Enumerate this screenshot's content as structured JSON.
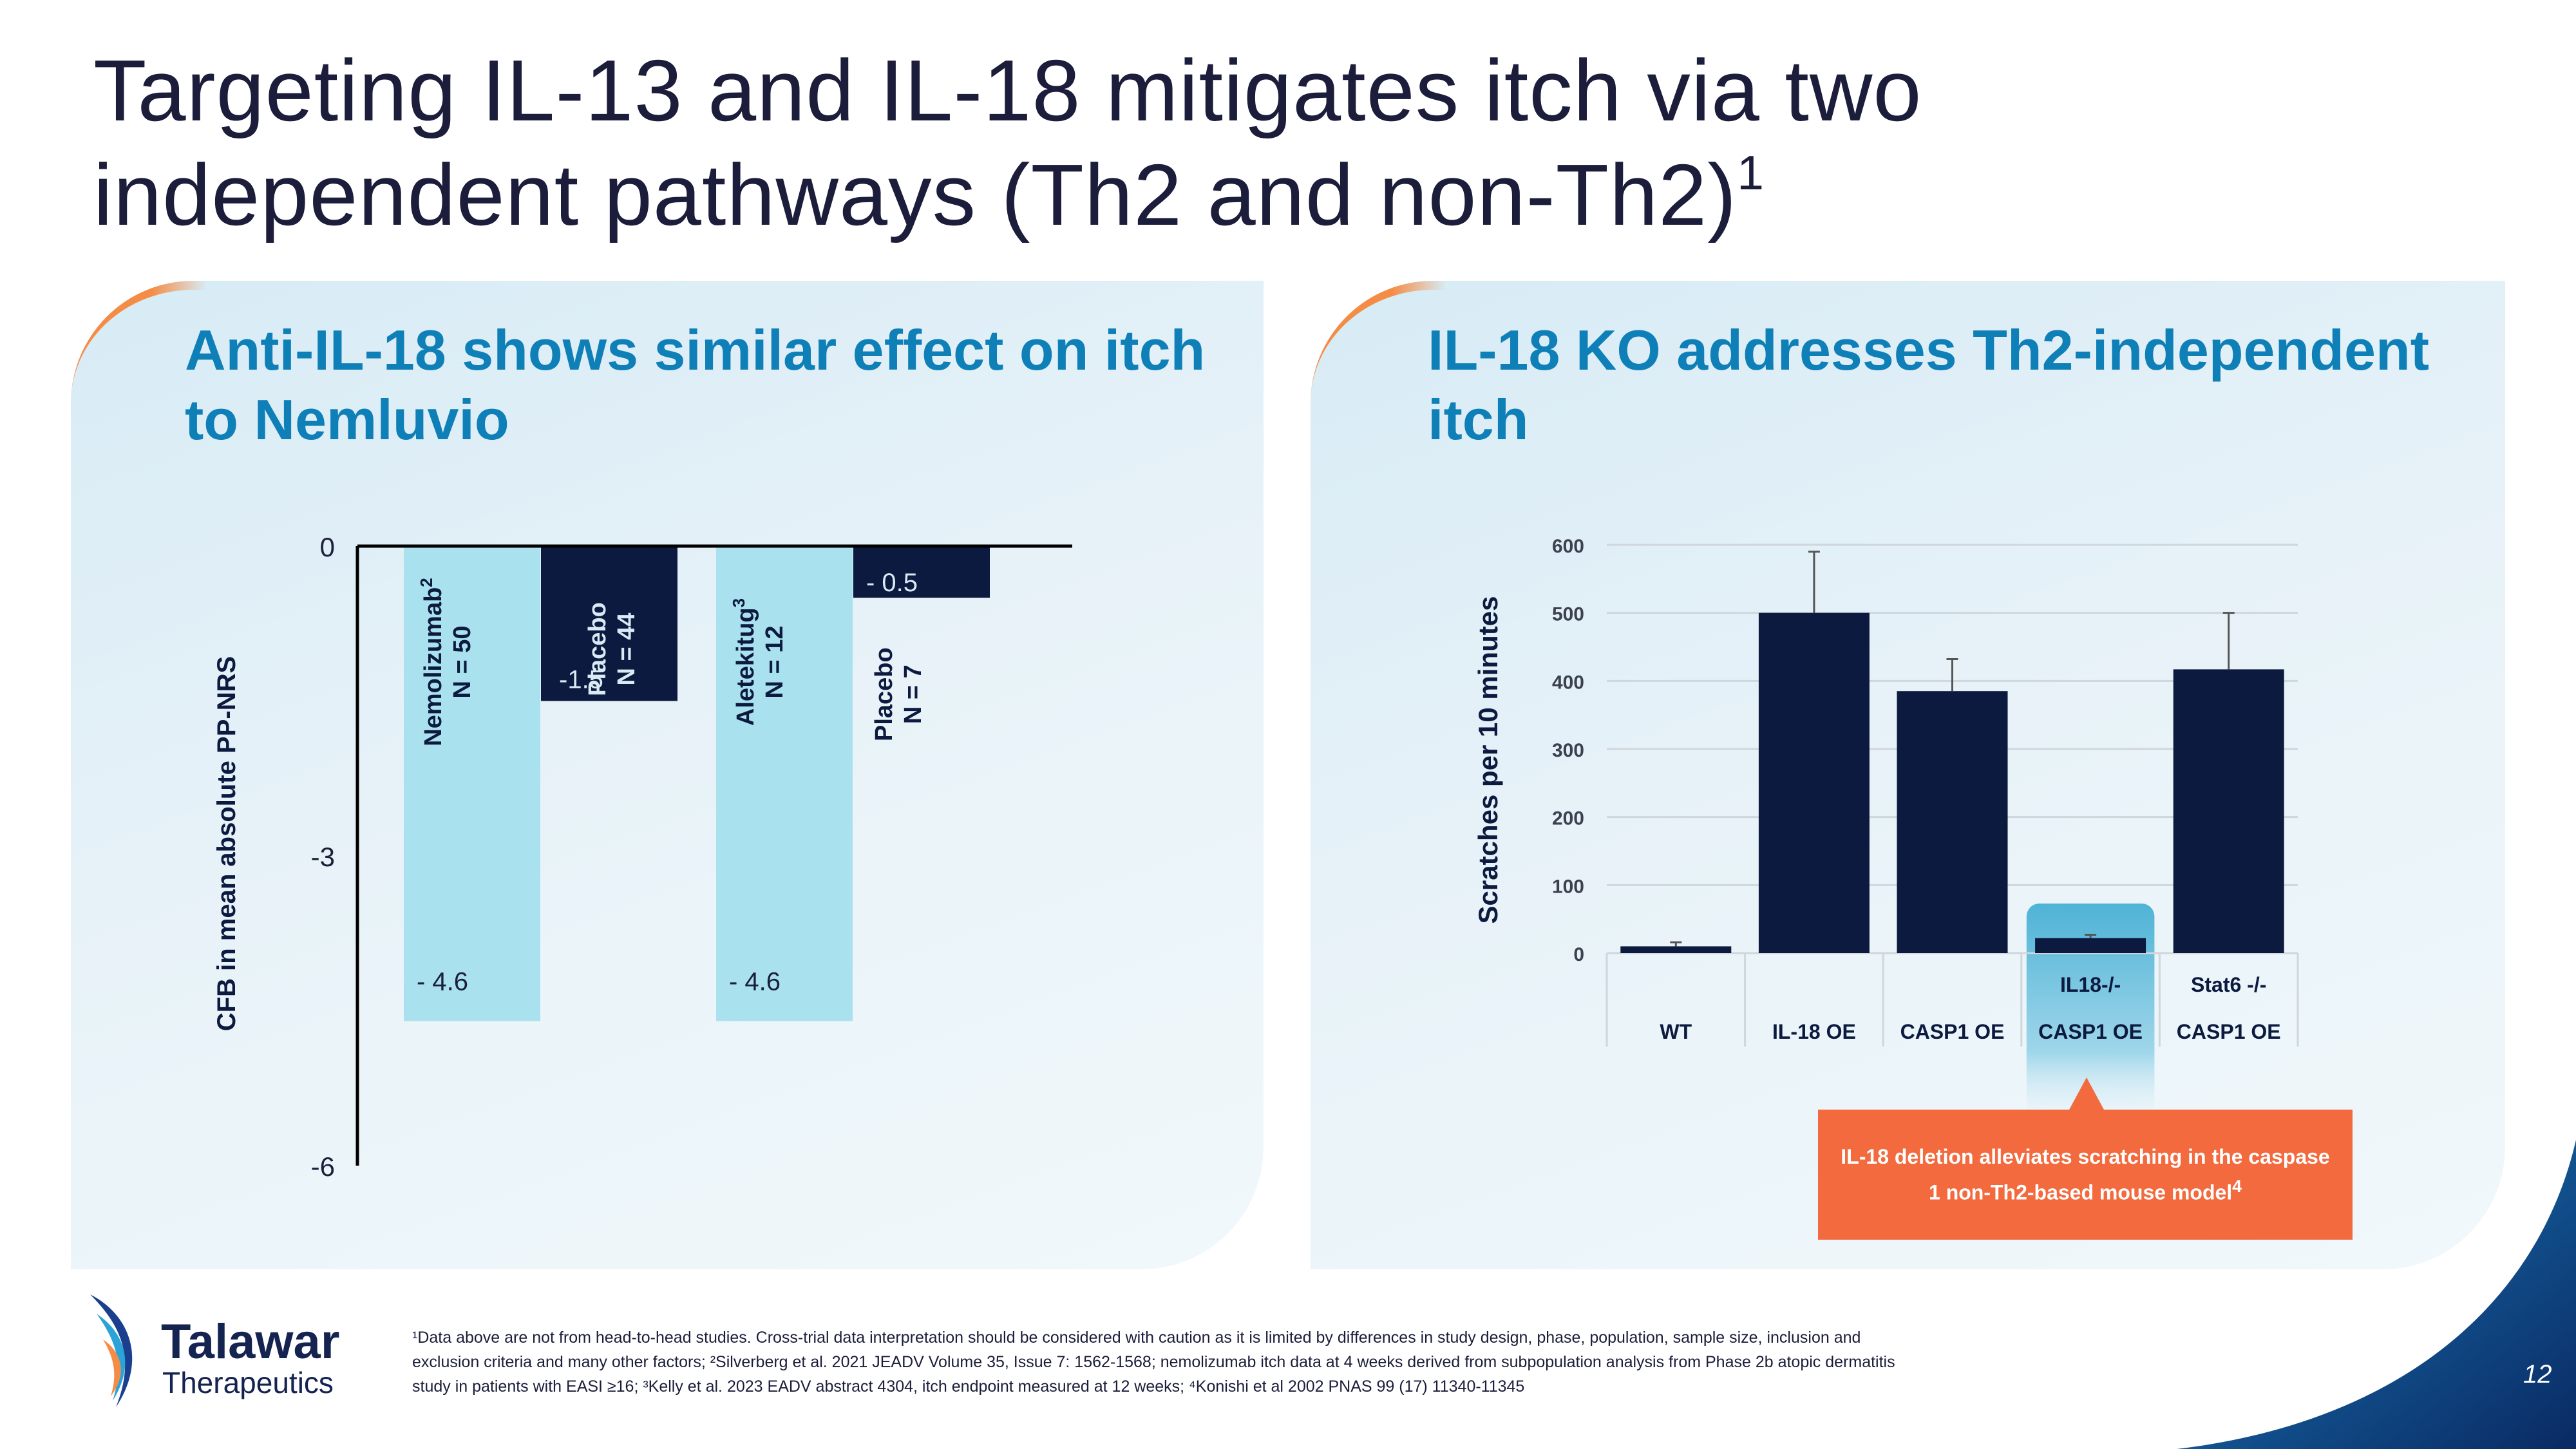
{
  "title": {
    "text": "Targeting IL-13 and IL-18 mitigates itch via two independent pathways (Th2 and non-Th2)",
    "sup": "1"
  },
  "left_panel": {
    "heading": "Anti-IL-18 shows similar effect on itch to Nemluvio"
  },
  "right_panel": {
    "heading": "IL-18 KO addresses Th2-independent itch"
  },
  "callout": {
    "text": "IL-18 deletion alleviates scratching in the caspase 1 non-Th2-based mouse model",
    "sup": "4"
  },
  "colors": {
    "light_bar": "#a9e2ee",
    "dark_bar": "#0c1a3f",
    "accent_orange": "#f26a3e",
    "heading_blue": "#0f7fb8",
    "highlight_blue": "#4fb3d6"
  },
  "chart_data": [
    {
      "type": "bar",
      "ylabel": "CFB in mean absolute PP-NRS",
      "ylim": [
        -6,
        0
      ],
      "yticks": [
        "0",
        "-3",
        "-6"
      ],
      "ytick_values": [
        0,
        -3,
        -6
      ],
      "categories": [
        "Nemolizumab² N = 50",
        "Placebo N = 44",
        "Aletekitug³ N = 12",
        "Placebo N = 7"
      ],
      "bars": [
        {
          "name": "Nemolizumab",
          "sup": "2",
          "n": "N = 50",
          "value": -4.6,
          "label": "- 4.6",
          "color": "#a9e2ee"
        },
        {
          "name": "Placebo",
          "sup": "",
          "n": "N = 44",
          "value": -1.5,
          "label": "-1.5",
          "color": "#0c1a3f"
        },
        {
          "name": "Aletekitug",
          "sup": "3",
          "n": "N = 12",
          "value": -4.6,
          "label": "- 4.6",
          "color": "#a9e2ee"
        },
        {
          "name": "Placebo",
          "sup": "",
          "n": "N = 7",
          "value": -0.5,
          "label": "- 0.5",
          "color": "#0c1a3f"
        }
      ]
    },
    {
      "type": "bar",
      "ylabel": "Scratches per 10 minutes",
      "ylim": [
        0,
        600
      ],
      "yticks": [
        "0",
        "100",
        "200",
        "300",
        "400",
        "500",
        "600"
      ],
      "ytick_values": [
        0,
        100,
        200,
        300,
        400,
        500,
        600
      ],
      "grid": true,
      "categories": [
        {
          "top": "",
          "bottom": "WT"
        },
        {
          "top": "",
          "bottom": "IL-18 OE"
        },
        {
          "top": "",
          "bottom": "CASP1 OE"
        },
        {
          "top": "IL18-/-",
          "bottom": "CASP1 OE"
        },
        {
          "top": "Stat6 -/-",
          "bottom": "CASP1 OE"
        }
      ],
      "values": [
        10,
        500,
        385,
        22,
        417
      ],
      "error_high": [
        16,
        590,
        432,
        27,
        500
      ],
      "highlight_index": 3
    }
  ],
  "logo": {
    "name": "Talawar",
    "sub": "Therapeutics"
  },
  "footnote": {
    "lines": [
      "¹Data above are not from head-to-head studies. Cross-trial data interpretation should be considered with caution as it is limited by differences in study design, phase, population, sample size, inclusion and",
      "exclusion criteria and many other factors; ²Silverberg et al. 2021 JEADV Volume 35, Issue 7: 1562-1568; nemolizumab itch data at 4 weeks derived from subpopulation analysis from Phase 2b atopic dermatitis",
      "study in patients with EASI ≥16; ³Kelly et al. 2023 EADV abstract 4304, itch endpoint measured at 12 weeks; ⁴Konishi et al 2002 PNAS 99 (17) 11340-11345"
    ]
  },
  "page_number": "12"
}
